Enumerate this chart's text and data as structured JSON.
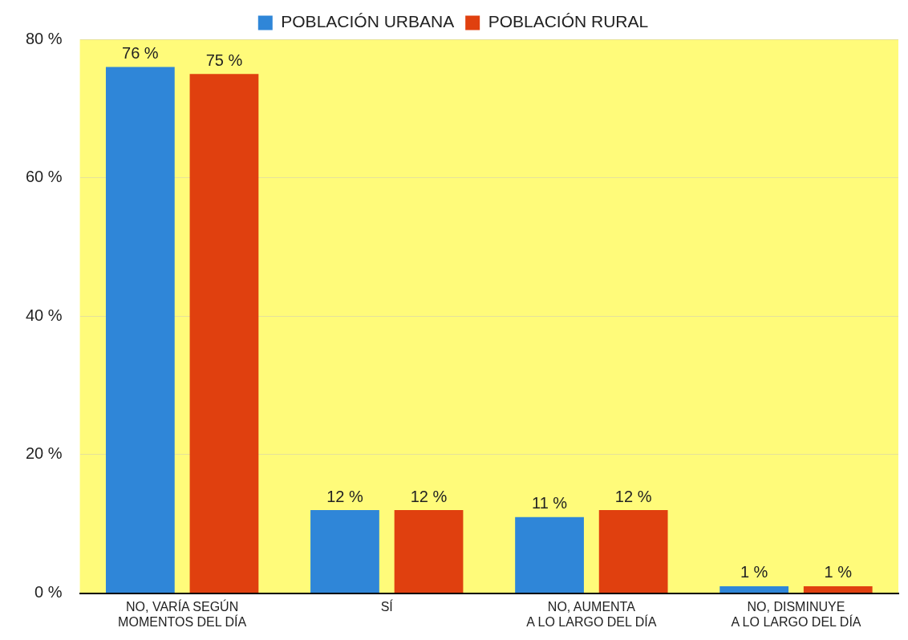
{
  "chart_data": {
    "type": "bar",
    "categories": [
      [
        "NO, VARÍA SEGÚN",
        "MOMENTOS DEL DÍA"
      ],
      [
        "SÍ"
      ],
      [
        "NO, AUMENTA",
        "A LO LARGO DEL DÍA"
      ],
      [
        "NO, DISMINUYE",
        "A LO LARGO DEL DÍA"
      ]
    ],
    "series": [
      {
        "name": "POBLACIÓN URBANA",
        "color": "#2f86d8",
        "values": [
          76,
          12,
          11,
          1
        ],
        "value_labels": [
          "76 %",
          "12 %",
          "11 %",
          "1 %"
        ]
      },
      {
        "name": "POBLACIÓN RURAL",
        "color": "#e0400f",
        "values": [
          75,
          12,
          12,
          1
        ],
        "value_labels": [
          "75 %",
          "12 %",
          "12 %",
          "1 %"
        ]
      }
    ],
    "ylim": [
      0,
      80
    ],
    "yticks": [
      {
        "value": 0,
        "label": "0 %"
      },
      {
        "value": 20,
        "label": "20 %"
      },
      {
        "value": 40,
        "label": "40 %"
      },
      {
        "value": 60,
        "label": "60 %"
      },
      {
        "value": 80,
        "label": "80 %"
      }
    ],
    "grid": "y",
    "legend": "top"
  }
}
